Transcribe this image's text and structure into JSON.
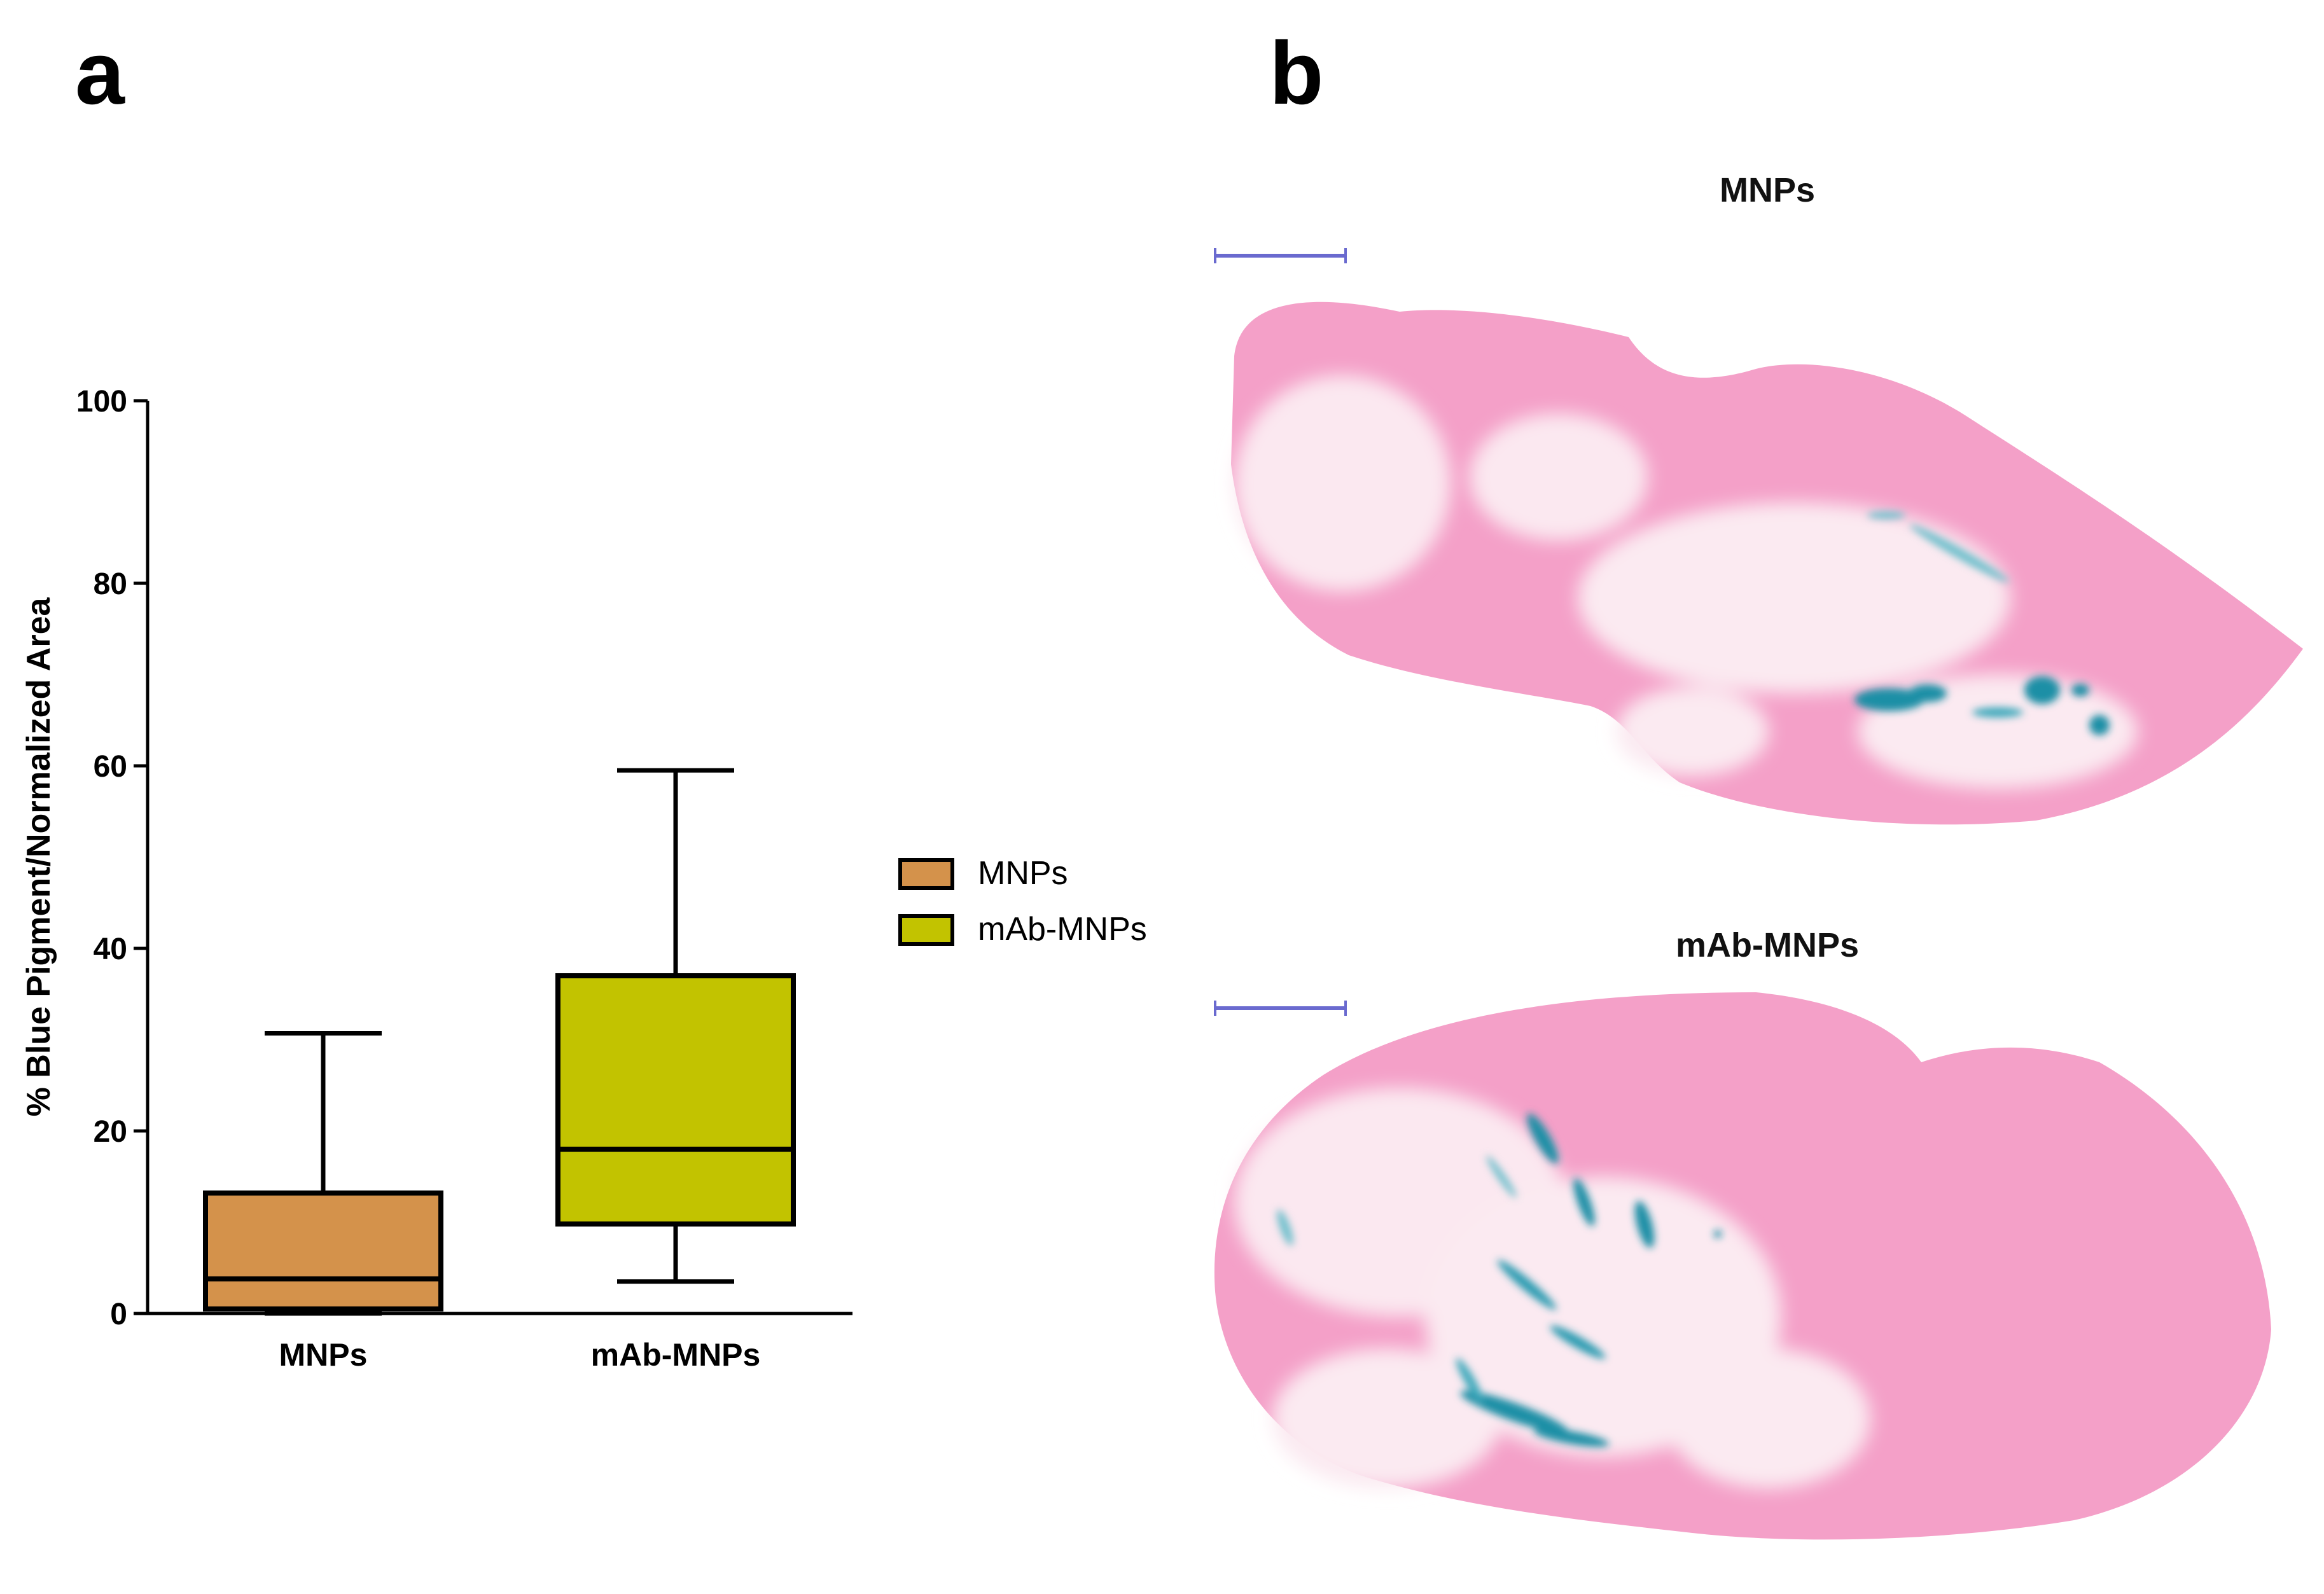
{
  "panel_a": {
    "letter": "a"
  },
  "panel_b": {
    "letter": "b",
    "images": [
      {
        "title": "MNPs"
      },
      {
        "title": "mAb-MNPs"
      }
    ]
  },
  "chart_data": {
    "type": "boxplot",
    "title": "",
    "xlabel": "",
    "ylabel": "% Blue Pigment/Normalized Area",
    "ylim": [
      0,
      100
    ],
    "yticks": [
      0,
      20,
      40,
      60,
      80,
      100
    ],
    "categories": [
      "MNPs",
      "mAb-MNPs"
    ],
    "legend_placement": "right",
    "grid": false,
    "series": [
      {
        "name": "MNPs",
        "color": "#D4924B",
        "min": 0,
        "q1": 0.5,
        "median": 3.8,
        "q3": 13.2,
        "max": 30.7
      },
      {
        "name": "mAb-MNPs",
        "color": "#C2C300",
        "min": 3.5,
        "q1": 9.8,
        "median": 18.0,
        "q3": 37.0,
        "max": 59.5
      }
    ]
  },
  "colors": {
    "tissue_pink": "#F4A0C8",
    "tissue_light": "#FBE3EE",
    "stain_blue": "#1E8FA6",
    "scale_bar": "#6A6ACF"
  }
}
